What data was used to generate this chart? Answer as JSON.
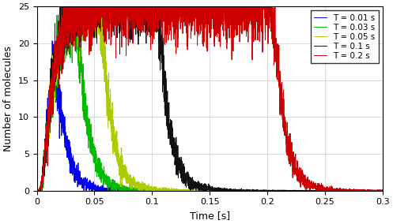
{
  "title": "",
  "xlabel": "Time [s]",
  "ylabel": "Number of molecules",
  "xlim": [
    0,
    0.3
  ],
  "ylim": [
    0,
    25
  ],
  "yticks": [
    0,
    5,
    10,
    15,
    20,
    25
  ],
  "xticks": [
    0,
    0.05,
    0.1,
    0.15,
    0.2,
    0.25,
    0.3
  ],
  "series": [
    {
      "label": "T = 0.01 s",
      "color": "#0000ee",
      "T": 0.01,
      "peak_scale": 16.0
    },
    {
      "label": "T = 0.03 s",
      "color": "#00bb00",
      "T": 0.03,
      "peak_scale": 23.0
    },
    {
      "label": "T = 0.05 s",
      "color": "#aacc00",
      "T": 0.05,
      "peak_scale": 25.0
    },
    {
      "label": "T = 0.1 s",
      "color": "#111111",
      "T": 0.1,
      "peak_scale": 25.5
    },
    {
      "label": "T = 0.2 s",
      "color": "#cc0000",
      "T": 0.2,
      "peak_scale": 25.0
    }
  ],
  "grid_color": "#cccccc",
  "background_color": "#ffffff",
  "legend_loc": "upper right",
  "noise_seed": 42,
  "tau_rise": 0.012,
  "tau_fall": 0.055
}
